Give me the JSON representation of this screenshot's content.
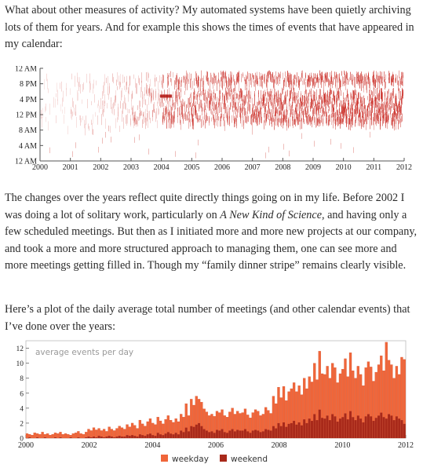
{
  "paragraphs": {
    "p1": "What about other measures of activity? My automated systems have been quietly archiving lots of them for years. And for example this shows the times of events that have appeared in my calendar:",
    "p2_a": "The changes over the years reflect quite directly things going on in my life. Before 2002 I was doing a lot of solitary work, particularly on ",
    "p2_em": "A New Kind of Science",
    "p2_b": ", and having only a few scheduled meetings. But then as I initiated more and more new projects at our company, and took a more and more structured approach to managing them, one can see more and more meetings getting filled in. Though my “family dinner stripe” remains clearly visible.",
    "p3": "Here’s a plot of the daily average total number of meetings (and other calendar events) that I’ve done over the years:"
  },
  "colors": {
    "event_red": "#c8231c",
    "weekday": "#f0663a",
    "weekend": "#a8291a",
    "axis": "#555555",
    "frame": "#bbbbbb"
  },
  "chart_data": [
    {
      "type": "scatter",
      "title": "",
      "xlabel": "",
      "ylabel": "",
      "x_ticks": [
        "2000",
        "2001",
        "2002",
        "2003",
        "2004",
        "2005",
        "2006",
        "2007",
        "2008",
        "2009",
        "2010",
        "2011",
        "2012"
      ],
      "y_ticks": [
        "12 AM",
        "8 PM",
        "4 PM",
        "12 PM",
        "8 AM",
        "4 AM",
        "12 AM"
      ],
      "xlim": [
        2000,
        2012
      ],
      "ylim_hours": [
        0,
        24
      ],
      "description_of_marks": "event time-of-day by date",
      "density_by_year": [
        0.05,
        0.12,
        0.2,
        0.3,
        0.65,
        0.7,
        0.72,
        0.8,
        0.85,
        0.88,
        0.9,
        0.92
      ],
      "dinner_gap_hours": [
        19,
        20.5
      ]
    },
    {
      "type": "bar",
      "title": "average events per day",
      "xlabel": "",
      "ylabel": "",
      "x_ticks": [
        "2000",
        "2002",
        "2004",
        "2006",
        "2008",
        "2010",
        "2012"
      ],
      "y_ticks": [
        "0",
        "2",
        "4",
        "6",
        "8",
        "10",
        "12"
      ],
      "xlim": [
        2000,
        2012
      ],
      "ylim": [
        0,
        13
      ],
      "legend": [
        "weekday",
        "weekend"
      ],
      "legend_position": "bottom",
      "series": [
        {
          "name": "weekday",
          "values": [
            0.6,
            0.5,
            0.4,
            0.7,
            0.6,
            0.5,
            0.8,
            0.5,
            0.6,
            0.4,
            0.5,
            0.7,
            0.6,
            0.8,
            0.5,
            0.6,
            0.5,
            0.4,
            0.6,
            0.7,
            0.9,
            0.6,
            0.5,
            0.8,
            1.2,
            1.0,
            1.4,
            1.1,
            1.3,
            1.0,
            1.2,
            0.9,
            1.5,
            1.2,
            1.0,
            1.3,
            1.6,
            1.4,
            1.2,
            1.8,
            1.5,
            2.0,
            1.7,
            1.3,
            2.4,
            1.9,
            1.6,
            2.2,
            2.6,
            2.0,
            1.8,
            2.8,
            2.3,
            1.9,
            2.5,
            3.0,
            2.4,
            2.1,
            2.6,
            2.2,
            3.2,
            2.8,
            4.6,
            3.0,
            5.2,
            4.4,
            5.6,
            5.2,
            4.8,
            3.9,
            3.5,
            3.0,
            3.2,
            2.9,
            3.6,
            3.4,
            3.8,
            3.0,
            2.8,
            3.5,
            4.0,
            3.2,
            3.6,
            3.3,
            3.4,
            3.9,
            3.1,
            2.7,
            3.4,
            3.8,
            3.6,
            3.0,
            3.2,
            4.1,
            3.7,
            3.3,
            5.6,
            4.6,
            6.8,
            5.4,
            6.9,
            5.0,
            6.2,
            6.6,
            7.4,
            6.2,
            7.0,
            5.8,
            8.0,
            6.6,
            8.2,
            7.5,
            10.0,
            7.8,
            11.6,
            8.6,
            8.5,
            9.6,
            8.0,
            10.0,
            9.4,
            7.4,
            8.6,
            9.2,
            10.6,
            8.2,
            11.4,
            9.0,
            8.0,
            9.6,
            8.5,
            7.0,
            9.4,
            10.2,
            9.5,
            7.6,
            8.8,
            9.8,
            11.0,
            9.0,
            12.8,
            10.4,
            9.8,
            8.0,
            9.6,
            8.5,
            10.8,
            10.5
          ]
        },
        {
          "name": "weekend",
          "values": [
            0.0,
            0.1,
            0.0,
            0.0,
            0.1,
            0.0,
            0.0,
            0.1,
            0.0,
            0.0,
            0.0,
            0.1,
            0.0,
            0.1,
            0.0,
            0.0,
            0.0,
            0.1,
            0.0,
            0.0,
            0.1,
            0.0,
            0.0,
            0.1,
            0.2,
            0.1,
            0.2,
            0.1,
            0.3,
            0.2,
            0.1,
            0.2,
            0.3,
            0.2,
            0.1,
            0.2,
            0.3,
            0.2,
            0.2,
            0.4,
            0.3,
            0.4,
            0.3,
            0.2,
            0.5,
            0.4,
            0.3,
            0.5,
            0.6,
            0.4,
            0.3,
            0.7,
            0.5,
            0.4,
            0.6,
            0.8,
            0.6,
            0.5,
            0.7,
            0.5,
            1.0,
            0.8,
            1.4,
            0.9,
            1.6,
            1.5,
            1.8,
            2.0,
            1.6,
            1.2,
            1.0,
            0.8,
            0.9,
            0.7,
            1.1,
            1.0,
            1.2,
            0.8,
            0.7,
            1.0,
            1.2,
            0.9,
            1.1,
            1.0,
            1.0,
            1.2,
            0.9,
            0.7,
            1.0,
            1.1,
            1.0,
            0.8,
            0.9,
            1.2,
            1.1,
            1.0,
            1.6,
            1.3,
            2.0,
            1.6,
            2.1,
            1.5,
            1.9,
            2.0,
            2.3,
            1.8,
            2.1,
            1.7,
            2.5,
            2.0,
            2.6,
            2.3,
            3.2,
            2.4,
            3.8,
            2.7,
            2.6,
            3.0,
            2.4,
            3.2,
            2.9,
            2.2,
            2.6,
            2.8,
            3.3,
            2.5,
            3.6,
            2.8,
            2.4,
            3.0,
            2.6,
            2.1,
            2.9,
            3.2,
            2.9,
            2.3,
            2.7,
            3.0,
            3.4,
            2.8,
            2.6,
            3.2,
            3.0,
            2.4,
            2.9,
            2.6,
            2.4,
            1.9
          ]
        }
      ]
    }
  ]
}
